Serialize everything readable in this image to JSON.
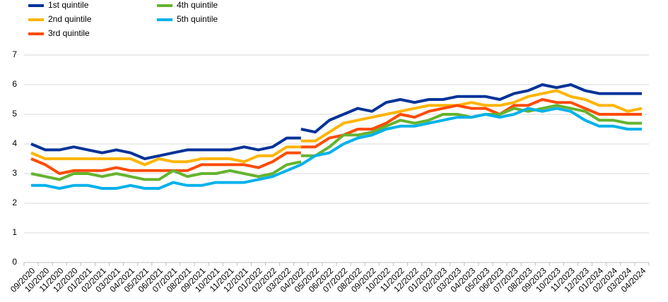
{
  "chart_data": {
    "type": "line",
    "categories": [
      "09/2020",
      "10/2020",
      "11/2020",
      "12/2020",
      "01/2021",
      "02/2021",
      "03/2021",
      "04/2021",
      "05/2021",
      "06/2021",
      "07/2021",
      "08/2021",
      "09/2021",
      "10/2021",
      "11/2021",
      "12/2021",
      "01/2022",
      "02/2022",
      "03/2022",
      "04/2022",
      "05/2022",
      "06/2022",
      "07/2022",
      "08/2022",
      "09/2022",
      "10/2022",
      "11/2022",
      "12/2022",
      "01/2023",
      "02/2023",
      "03/2023",
      "04/2023",
      "05/2023",
      "06/2023",
      "07/2023",
      "08/2023",
      "09/2023",
      "10/2023",
      "11/2023",
      "12/2023",
      "01/2024",
      "02/2024",
      "03/2024",
      "04/2024"
    ],
    "ylim": [
      0,
      7
    ],
    "yticks": [
      0,
      1,
      2,
      3,
      4,
      5,
      6,
      7
    ],
    "grid": true,
    "series": [
      {
        "name": "1st quintile",
        "color": "#003299",
        "values": [
          4.0,
          3.8,
          3.8,
          3.9,
          3.8,
          3.7,
          3.8,
          3.7,
          3.5,
          3.6,
          3.7,
          3.8,
          3.8,
          3.8,
          3.8,
          3.9,
          3.8,
          3.9,
          4.2,
          4.2,
          null,
          null,
          null,
          null,
          null,
          null,
          null,
          null,
          null,
          null,
          null,
          null,
          null,
          null,
          null,
          null,
          null,
          null,
          null,
          null,
          null,
          null,
          null,
          null
        ],
        "values_after_break": [
          null,
          null,
          null,
          null,
          null,
          null,
          null,
          null,
          null,
          null,
          null,
          null,
          null,
          null,
          null,
          null,
          null,
          null,
          null,
          4.5,
          4.4,
          4.8,
          5.0,
          5.2,
          5.1,
          5.4,
          5.5,
          5.4,
          5.5,
          5.5,
          5.6,
          5.6,
          5.6,
          5.5,
          5.7,
          5.8,
          6.0,
          5.9,
          6.0,
          5.8,
          5.7,
          5.7,
          5.7,
          5.7
        ]
      },
      {
        "name": "2nd quintile",
        "color": "#ffb400",
        "values": [
          3.7,
          3.5,
          3.5,
          3.5,
          3.5,
          3.5,
          3.5,
          3.5,
          3.3,
          3.5,
          3.4,
          3.4,
          3.5,
          3.5,
          3.5,
          3.4,
          3.6,
          3.6,
          3.9,
          3.9,
          null,
          null,
          null,
          null,
          null,
          null,
          null,
          null,
          null,
          null,
          null,
          null,
          null,
          null,
          null,
          null,
          null,
          null,
          null,
          null,
          null,
          null,
          null,
          null
        ],
        "values_after_break": [
          null,
          null,
          null,
          null,
          null,
          null,
          null,
          null,
          null,
          null,
          null,
          null,
          null,
          null,
          null,
          null,
          null,
          null,
          null,
          4.1,
          4.1,
          4.4,
          4.7,
          4.8,
          4.9,
          5.0,
          5.1,
          5.2,
          5.3,
          5.3,
          5.3,
          5.4,
          5.3,
          5.3,
          5.4,
          5.6,
          5.7,
          5.8,
          5.6,
          5.5,
          5.3,
          5.3,
          5.1,
          5.2
        ]
      },
      {
        "name": "3rd quintile",
        "color": "#ff4b00",
        "values": [
          3.5,
          3.3,
          3.0,
          3.1,
          3.1,
          3.1,
          3.2,
          3.1,
          3.1,
          3.1,
          3.1,
          3.1,
          3.3,
          3.3,
          3.3,
          3.3,
          3.2,
          3.4,
          3.7,
          3.7,
          null,
          null,
          null,
          null,
          null,
          null,
          null,
          null,
          null,
          null,
          null,
          null,
          null,
          null,
          null,
          null,
          null,
          null,
          null,
          null,
          null,
          null,
          null,
          null
        ],
        "values_after_break": [
          null,
          null,
          null,
          null,
          null,
          null,
          null,
          null,
          null,
          null,
          null,
          null,
          null,
          null,
          null,
          null,
          null,
          null,
          null,
          3.9,
          3.9,
          4.2,
          4.3,
          4.5,
          4.5,
          4.7,
          5.0,
          4.9,
          5.1,
          5.2,
          5.3,
          5.2,
          5.2,
          5.0,
          5.3,
          5.3,
          5.5,
          5.4,
          5.4,
          5.2,
          5.0,
          5.0,
          5.0,
          5.0
        ]
      },
      {
        "name": "4th quintile",
        "color": "#65b32e",
        "values": [
          3.0,
          2.9,
          2.8,
          3.0,
          3.0,
          2.9,
          3.0,
          2.9,
          2.8,
          2.8,
          3.1,
          2.9,
          3.0,
          3.0,
          3.1,
          3.0,
          2.9,
          3.0,
          3.3,
          3.4,
          null,
          null,
          null,
          null,
          null,
          null,
          null,
          null,
          null,
          null,
          null,
          null,
          null,
          null,
          null,
          null,
          null,
          null,
          null,
          null,
          null,
          null,
          null,
          null
        ],
        "values_after_break": [
          null,
          null,
          null,
          null,
          null,
          null,
          null,
          null,
          null,
          null,
          null,
          null,
          null,
          null,
          null,
          null,
          null,
          null,
          null,
          3.6,
          3.6,
          3.9,
          4.3,
          4.3,
          4.4,
          4.6,
          4.8,
          4.7,
          4.8,
          5.0,
          5.0,
          4.9,
          5.0,
          5.0,
          5.2,
          5.1,
          5.2,
          5.3,
          5.2,
          5.1,
          4.8,
          4.8,
          4.7,
          4.7
        ]
      },
      {
        "name": "5th quintile",
        "color": "#00b1ea",
        "values": [
          2.6,
          2.6,
          2.5,
          2.6,
          2.6,
          2.5,
          2.5,
          2.6,
          2.5,
          2.5,
          2.7,
          2.6,
          2.6,
          2.7,
          2.7,
          2.7,
          2.8,
          2.9,
          3.1,
          3.3,
          3.6,
          3.7,
          4.0,
          4.2,
          4.3,
          4.5,
          4.6,
          4.6,
          4.7,
          4.8,
          4.9,
          4.9,
          5.0,
          4.9,
          5.0,
          5.2,
          5.1,
          5.2,
          5.1,
          4.8,
          4.6,
          4.6,
          4.5,
          4.5
        ]
      }
    ]
  }
}
